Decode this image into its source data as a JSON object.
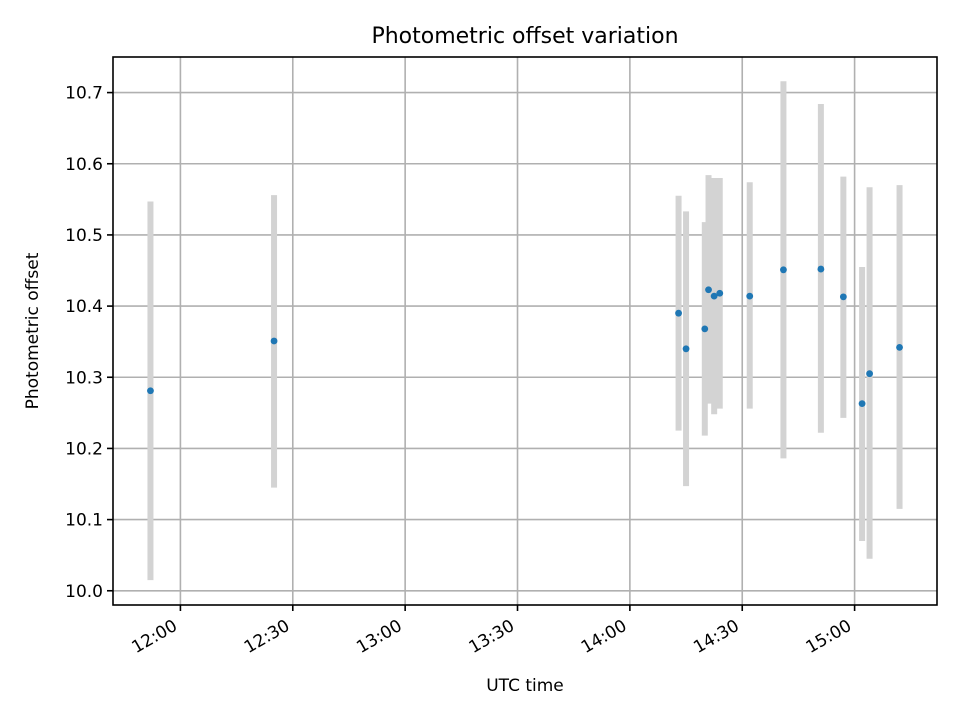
{
  "chart_data": {
    "type": "scatter",
    "title": "Photometric offset variation",
    "xlabel": "UTC time",
    "ylabel": "Photometric offset",
    "xlim": [
      "11:42",
      "15:22"
    ],
    "ylim": [
      9.98,
      10.75
    ],
    "x_ticks": [
      "12:00",
      "12:30",
      "13:00",
      "13:30",
      "14:00",
      "14:30",
      "15:00"
    ],
    "y_ticks": [
      "10.0",
      "10.1",
      "10.2",
      "10.3",
      "10.4",
      "10.5",
      "10.6",
      "10.7"
    ],
    "grid": true,
    "colors": {
      "points": "#1f77b4",
      "errorbars": "#d3d3d3",
      "grid": "#b0b0b0"
    },
    "points": [
      {
        "time": "11:52",
        "y": 10.281,
        "low": 10.015,
        "high": 10.547
      },
      {
        "time": "12:25",
        "y": 10.351,
        "low": 10.145,
        "high": 10.556
      },
      {
        "time": "14:13",
        "y": 10.39,
        "low": 10.225,
        "high": 10.555
      },
      {
        "time": "14:15",
        "y": 10.34,
        "low": 10.147,
        "high": 10.533
      },
      {
        "time": "14:20",
        "y": 10.368,
        "low": 10.218,
        "high": 10.518
      },
      {
        "time": "14:21",
        "y": 10.423,
        "low": 10.263,
        "high": 10.584
      },
      {
        "time": "14:22.5",
        "y": 10.414,
        "low": 10.248,
        "high": 10.58
      },
      {
        "time": "14:24",
        "y": 10.418,
        "low": 10.256,
        "high": 10.58
      },
      {
        "time": "14:32",
        "y": 10.414,
        "low": 10.256,
        "high": 10.574
      },
      {
        "time": "14:41",
        "y": 10.451,
        "low": 10.186,
        "high": 10.716
      },
      {
        "time": "14:51",
        "y": 10.452,
        "low": 10.222,
        "high": 10.684
      },
      {
        "time": "14:57",
        "y": 10.413,
        "low": 10.243,
        "high": 10.582
      },
      {
        "time": "15:02",
        "y": 10.263,
        "low": 10.07,
        "high": 10.455
      },
      {
        "time": "15:04",
        "y": 10.305,
        "low": 10.045,
        "high": 10.567
      },
      {
        "time": "15:12",
        "y": 10.342,
        "low": 10.115,
        "high": 10.57
      }
    ]
  }
}
